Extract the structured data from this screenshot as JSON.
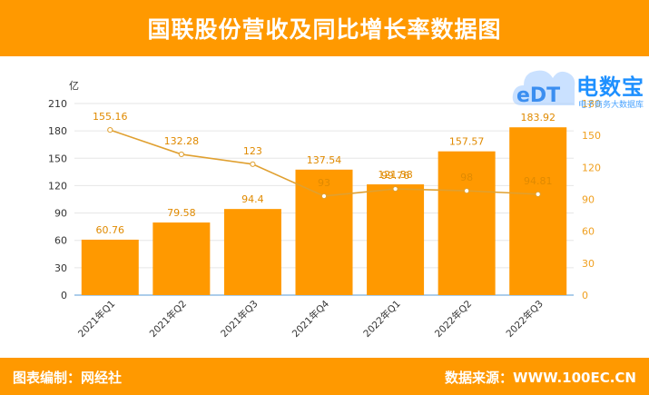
{
  "header": {
    "title": "国联股份营收及同比增长率数据图"
  },
  "footer": {
    "left": "图表编制：网经社",
    "right": "数据来源：WWW.100EC.CN"
  },
  "logo": {
    "name": "电数宝",
    "sub": "电子商务大数据库"
  },
  "chart_data": {
    "type": "bar",
    "categories": [
      "2021年Q1",
      "2021年Q2",
      "2021年Q3",
      "2021年Q4",
      "2022年Q1",
      "2022年Q2",
      "2022年Q3"
    ],
    "ylabel": "亿",
    "ylim": [
      0,
      210
    ],
    "yticks": [
      0,
      30,
      60,
      90,
      120,
      150,
      180,
      210
    ],
    "y2lim": [
      0,
      180
    ],
    "y2ticks": [
      0,
      30,
      60,
      90,
      120,
      150,
      180
    ],
    "series": [
      {
        "type": "bar",
        "axis": "left",
        "values": [
          60.76,
          79.58,
          94.4,
          137.54,
          121.38,
          157.57,
          183.92
        ],
        "color": "#FF9900"
      },
      {
        "type": "line",
        "axis": "right",
        "values": [
          155.16,
          132.28,
          123,
          93,
          99.76,
          98,
          94.81
        ],
        "color": "#E0A030"
      }
    ],
    "grid": true
  }
}
